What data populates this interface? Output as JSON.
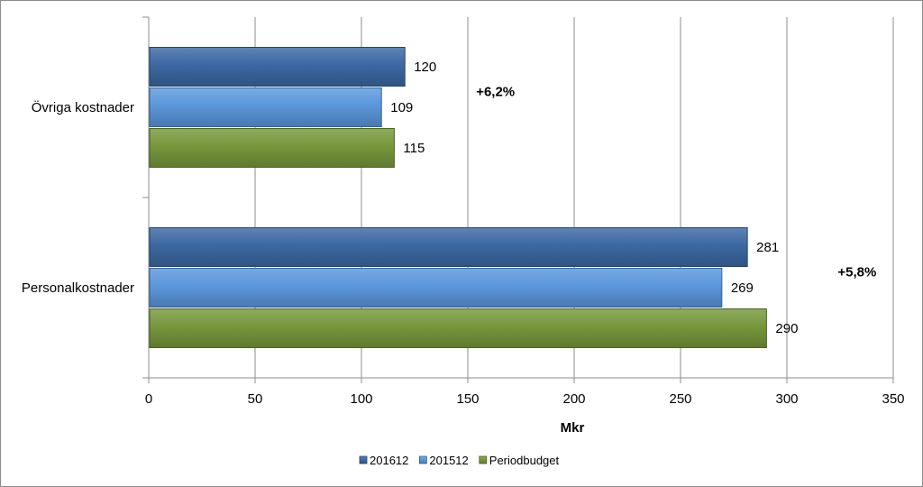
{
  "chart_data": {
    "type": "bar",
    "orientation": "horizontal",
    "categories": [
      "Övriga kostnader",
      "Personalkostnader"
    ],
    "series": [
      {
        "name": "201612",
        "values": [
          120,
          281
        ],
        "color": "#3c68a3"
      },
      {
        "name": "201512",
        "values": [
          109,
          269
        ],
        "color": "#5b97dc"
      },
      {
        "name": "Periodbudget",
        "values": [
          115,
          290
        ],
        "color": "#77973c"
      }
    ],
    "xlabel": "Mkr",
    "ylabel": "",
    "xlim": [
      0,
      350
    ],
    "xticks": [
      0,
      50,
      100,
      150,
      200,
      250,
      300,
      350
    ],
    "grid": true,
    "legend_position": "bottom",
    "annotations": [
      {
        "category": "Övriga kostnader",
        "text": "+6,2%"
      },
      {
        "category": "Personalkostnader",
        "text": "+5,8%"
      }
    ]
  }
}
